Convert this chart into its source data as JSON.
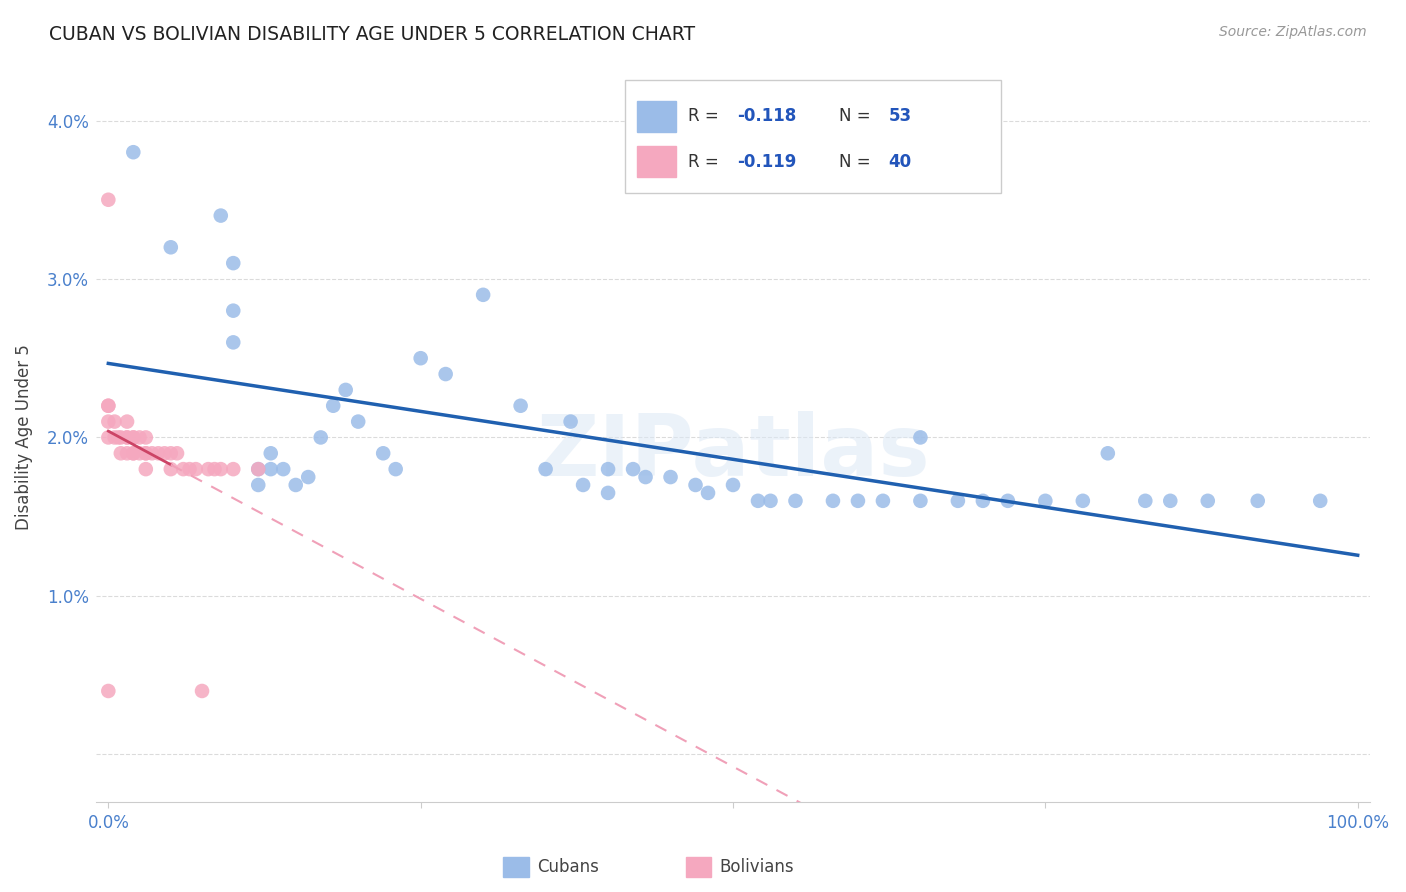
{
  "title": "CUBAN VS BOLIVIAN DISABILITY AGE UNDER 5 CORRELATION CHART",
  "source": "Source: ZipAtlas.com",
  "ylabel": "Disability Age Under 5",
  "ytick_vals": [
    0.0,
    0.01,
    0.02,
    0.03,
    0.04
  ],
  "ytick_labels": [
    "",
    "1.0%",
    "2.0%",
    "3.0%",
    "4.0%"
  ],
  "xtick_vals": [
    0.0,
    0.25,
    0.5,
    0.75,
    1.0
  ],
  "xtick_labels": [
    "0.0%",
    "",
    "",
    "",
    "100.0%"
  ],
  "watermark_text": "ZIPatlas",
  "legend_r1": "-0.118",
  "legend_n1": "53",
  "legend_r2": "-0.119",
  "legend_n2": "40",
  "cuban_color": "#9bbce8",
  "bolivian_color": "#f5a8bf",
  "cuban_line_color": "#2060b0",
  "bolivian_line_solid_color": "#cc4466",
  "bolivian_line_dash_color": "#f0a0b8",
  "bg_color": "#ffffff",
  "grid_color": "#cccccc",
  "cuban_x": [
    0.02,
    0.05,
    0.09,
    0.1,
    0.1,
    0.1,
    0.12,
    0.12,
    0.13,
    0.13,
    0.14,
    0.15,
    0.16,
    0.17,
    0.18,
    0.19,
    0.2,
    0.22,
    0.23,
    0.25,
    0.27,
    0.3,
    0.33,
    0.35,
    0.37,
    0.38,
    0.4,
    0.4,
    0.42,
    0.43,
    0.45,
    0.47,
    0.48,
    0.5,
    0.52,
    0.53,
    0.55,
    0.58,
    0.6,
    0.62,
    0.65,
    0.65,
    0.68,
    0.7,
    0.72,
    0.75,
    0.78,
    0.8,
    0.83,
    0.85,
    0.88,
    0.92,
    0.97
  ],
  "cuban_y": [
    0.038,
    0.032,
    0.034,
    0.031,
    0.028,
    0.026,
    0.018,
    0.017,
    0.019,
    0.018,
    0.018,
    0.017,
    0.0175,
    0.02,
    0.022,
    0.023,
    0.021,
    0.019,
    0.018,
    0.025,
    0.024,
    0.029,
    0.022,
    0.018,
    0.021,
    0.017,
    0.018,
    0.0165,
    0.018,
    0.0175,
    0.0175,
    0.017,
    0.0165,
    0.017,
    0.016,
    0.016,
    0.016,
    0.016,
    0.016,
    0.016,
    0.016,
    0.02,
    0.016,
    0.016,
    0.016,
    0.016,
    0.016,
    0.019,
    0.016,
    0.016,
    0.016,
    0.016,
    0.016
  ],
  "bolivian_x": [
    0.0,
    0.0,
    0.0,
    0.0,
    0.0,
    0.0,
    0.005,
    0.005,
    0.008,
    0.01,
    0.01,
    0.015,
    0.015,
    0.015,
    0.015,
    0.02,
    0.02,
    0.02,
    0.02,
    0.025,
    0.025,
    0.03,
    0.03,
    0.03,
    0.03,
    0.035,
    0.04,
    0.045,
    0.05,
    0.05,
    0.055,
    0.06,
    0.065,
    0.07,
    0.075,
    0.08,
    0.085,
    0.09,
    0.1,
    0.12
  ],
  "bolivian_y": [
    0.035,
    0.022,
    0.022,
    0.021,
    0.02,
    0.004,
    0.021,
    0.02,
    0.02,
    0.02,
    0.019,
    0.021,
    0.02,
    0.02,
    0.019,
    0.02,
    0.02,
    0.019,
    0.019,
    0.02,
    0.019,
    0.02,
    0.019,
    0.019,
    0.018,
    0.019,
    0.019,
    0.019,
    0.019,
    0.018,
    0.019,
    0.018,
    0.018,
    0.018,
    0.004,
    0.018,
    0.018,
    0.018,
    0.018,
    0.018
  ]
}
